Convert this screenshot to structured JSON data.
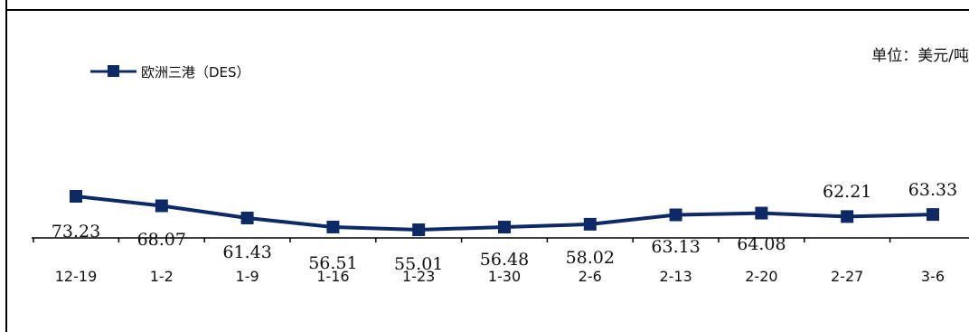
{
  "chart_data": {
    "type": "line",
    "title": "",
    "unit_label": "单位：美元/吨",
    "xlabel": "",
    "ylabel": "",
    "categories": [
      "12-19",
      "1-2",
      "1-9",
      "1-16",
      "1-23",
      "1-30",
      "2-6",
      "2-13",
      "2-20",
      "2-27",
      "3-6"
    ],
    "series": [
      {
        "name": "欧洲三港（DES）",
        "color": "#0d2a66",
        "marker": "square",
        "values": [
          73.23,
          68.07,
          61.43,
          56.51,
          55.01,
          56.48,
          58.02,
          63.13,
          64.08,
          62.21,
          63.33
        ]
      }
    ],
    "value_labels": [
      "73.23",
      "68.07",
      "61.43",
      "56.51",
      "55.01",
      "56.48",
      "58.02",
      "63.13",
      "64.08",
      "62.21",
      "63.33"
    ],
    "legend_position": "top-left",
    "grid": false
  }
}
